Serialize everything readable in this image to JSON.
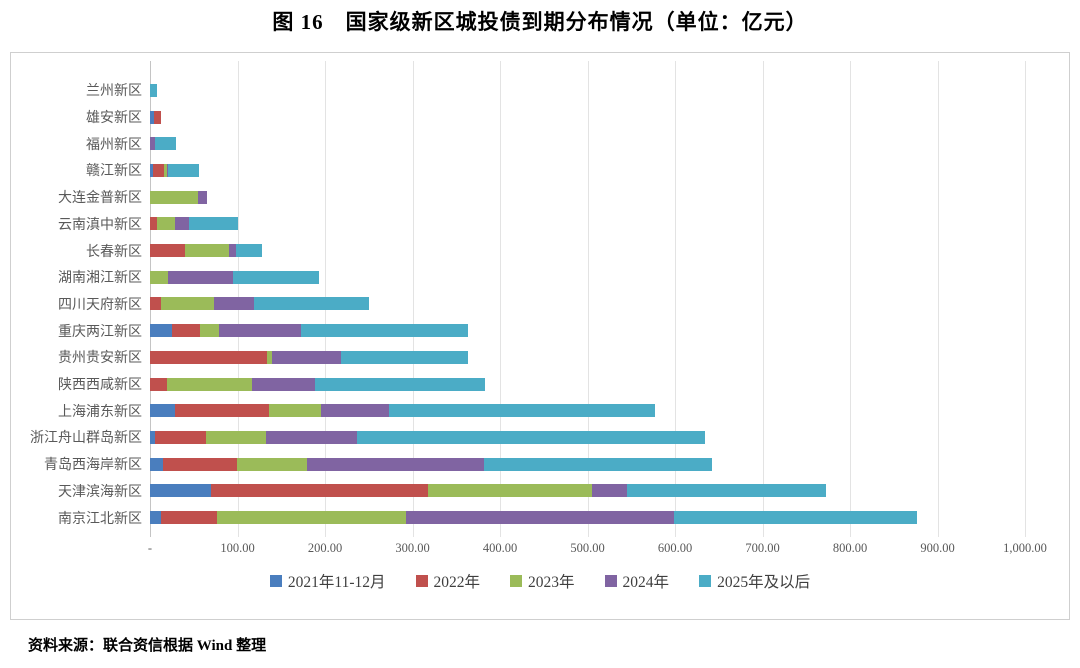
{
  "title": "图 16　国家级新区城投债到期分布情况（单位：亿元）",
  "source": "资料来源：联合资信根据 Wind 整理",
  "chart_data": {
    "type": "bar",
    "orientation": "horizontal-stacked",
    "title": "图 16　国家级新区城投债到期分布情况（单位：亿元）",
    "unit": "亿元",
    "categories": [
      "兰州新区",
      "雄安新区",
      "福州新区",
      "赣江新区",
      "大连金普新区",
      "云南滇中新区",
      "长春新区",
      "湖南湘江新区",
      "四川天府新区",
      "重庆两江新区",
      "贵州贵安新区",
      "陕西西咸新区",
      "上海浦东新区",
      "浙江舟山群岛新区",
      "青岛西海岸新区",
      "天津滨海新区",
      "南京江北新区"
    ],
    "series": [
      {
        "name": "2021年11-12月",
        "color": "#4A7EBE",
        "values": [
          0,
          5,
          0,
          3,
          0,
          0,
          0,
          0,
          0,
          25,
          0,
          0,
          29,
          6,
          15,
          70,
          13
        ]
      },
      {
        "name": "2022年",
        "color": "#C0504D",
        "values": [
          0,
          7,
          0,
          13,
          0,
          8,
          40,
          0,
          12,
          32,
          134,
          19,
          107,
          58,
          84,
          248,
          63
        ]
      },
      {
        "name": "2023年",
        "color": "#9BBB59",
        "values": [
          0,
          0,
          0,
          3,
          55,
          21,
          50,
          21,
          61,
          22,
          5,
          97,
          59,
          69,
          80,
          187,
          217
        ]
      },
      {
        "name": "2024年",
        "color": "#8064A2",
        "values": [
          0,
          0,
          6,
          2,
          10,
          15,
          8,
          74,
          46,
          93,
          79,
          72,
          78,
          104,
          203,
          40,
          306
        ]
      },
      {
        "name": "2025年及以后",
        "color": "#4BACC6",
        "values": [
          8,
          0,
          24,
          35,
          0,
          57,
          30,
          98,
          131,
          191,
          145,
          195,
          304,
          397,
          260,
          227,
          278
        ]
      }
    ],
    "totals": [
      8,
      12,
      30,
      56,
      65,
      101,
      128,
      193,
      250,
      363,
      363,
      383,
      577,
      634,
      642,
      772,
      877
    ],
    "xlim": [
      0,
      1000
    ],
    "x_ticks": [
      "-",
      "100.00",
      "200.00",
      "300.00",
      "400.00",
      "500.00",
      "600.00",
      "700.00",
      "800.00",
      "900.00",
      "1,000.00"
    ],
    "grid": true,
    "legend_position": "bottom",
    "axis_color": "#595959",
    "gridline_color": "#e3e3e3"
  }
}
